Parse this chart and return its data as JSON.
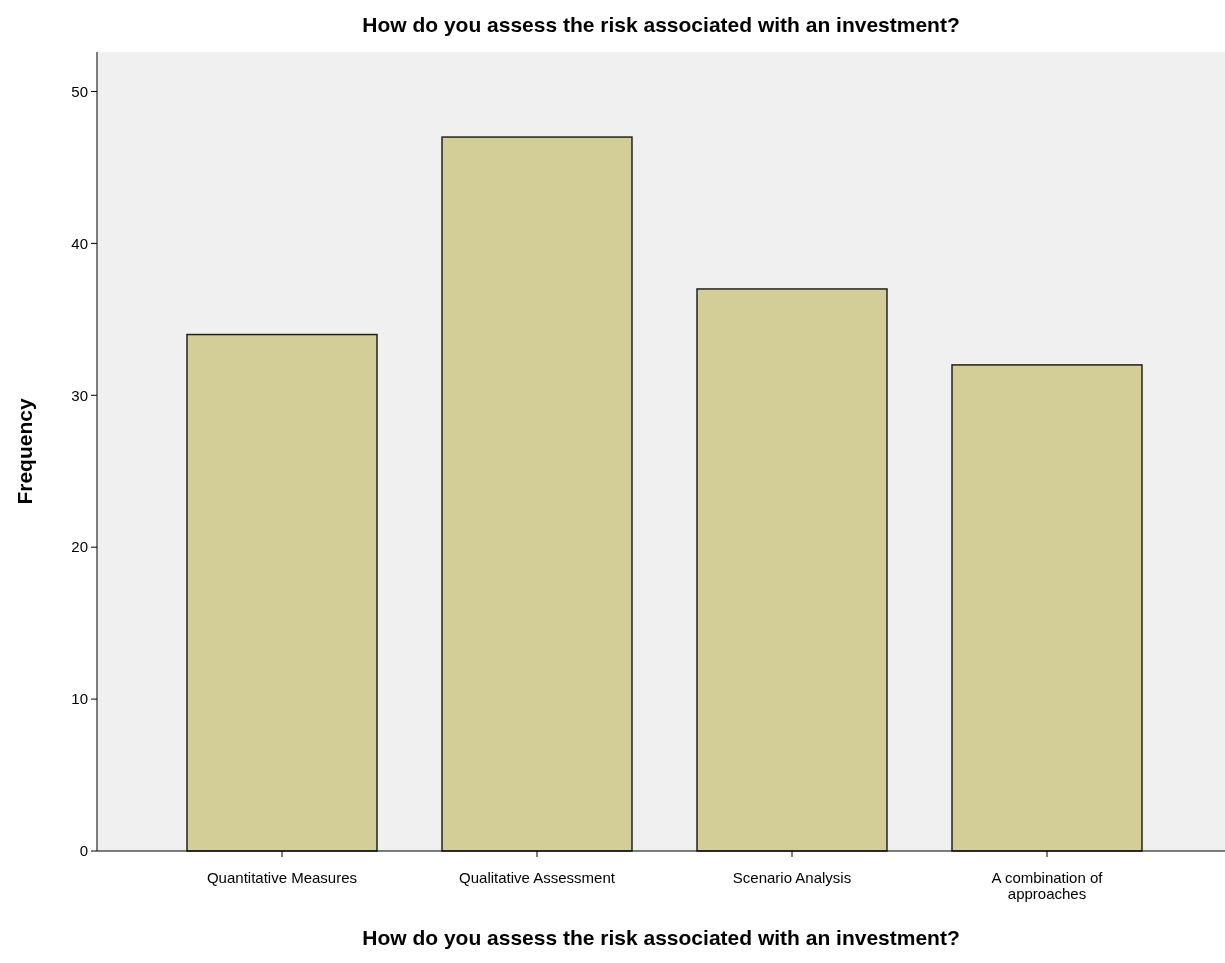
{
  "chart_data": {
    "type": "bar",
    "title": "How do you assess the risk associated with an investment?",
    "xlabel": "How do you assess the risk associated with an investment?",
    "ylabel": "Frequency",
    "categories": [
      "Quantitative Measures",
      "Qualitative Assessment",
      "Scenario Analysis",
      "A combination of approaches"
    ],
    "values": [
      34,
      47,
      37,
      32
    ],
    "color": "#d3ce97",
    "ylim": [
      0,
      52.6
    ],
    "yticks": [
      0,
      10,
      20,
      30,
      40,
      50
    ]
  }
}
